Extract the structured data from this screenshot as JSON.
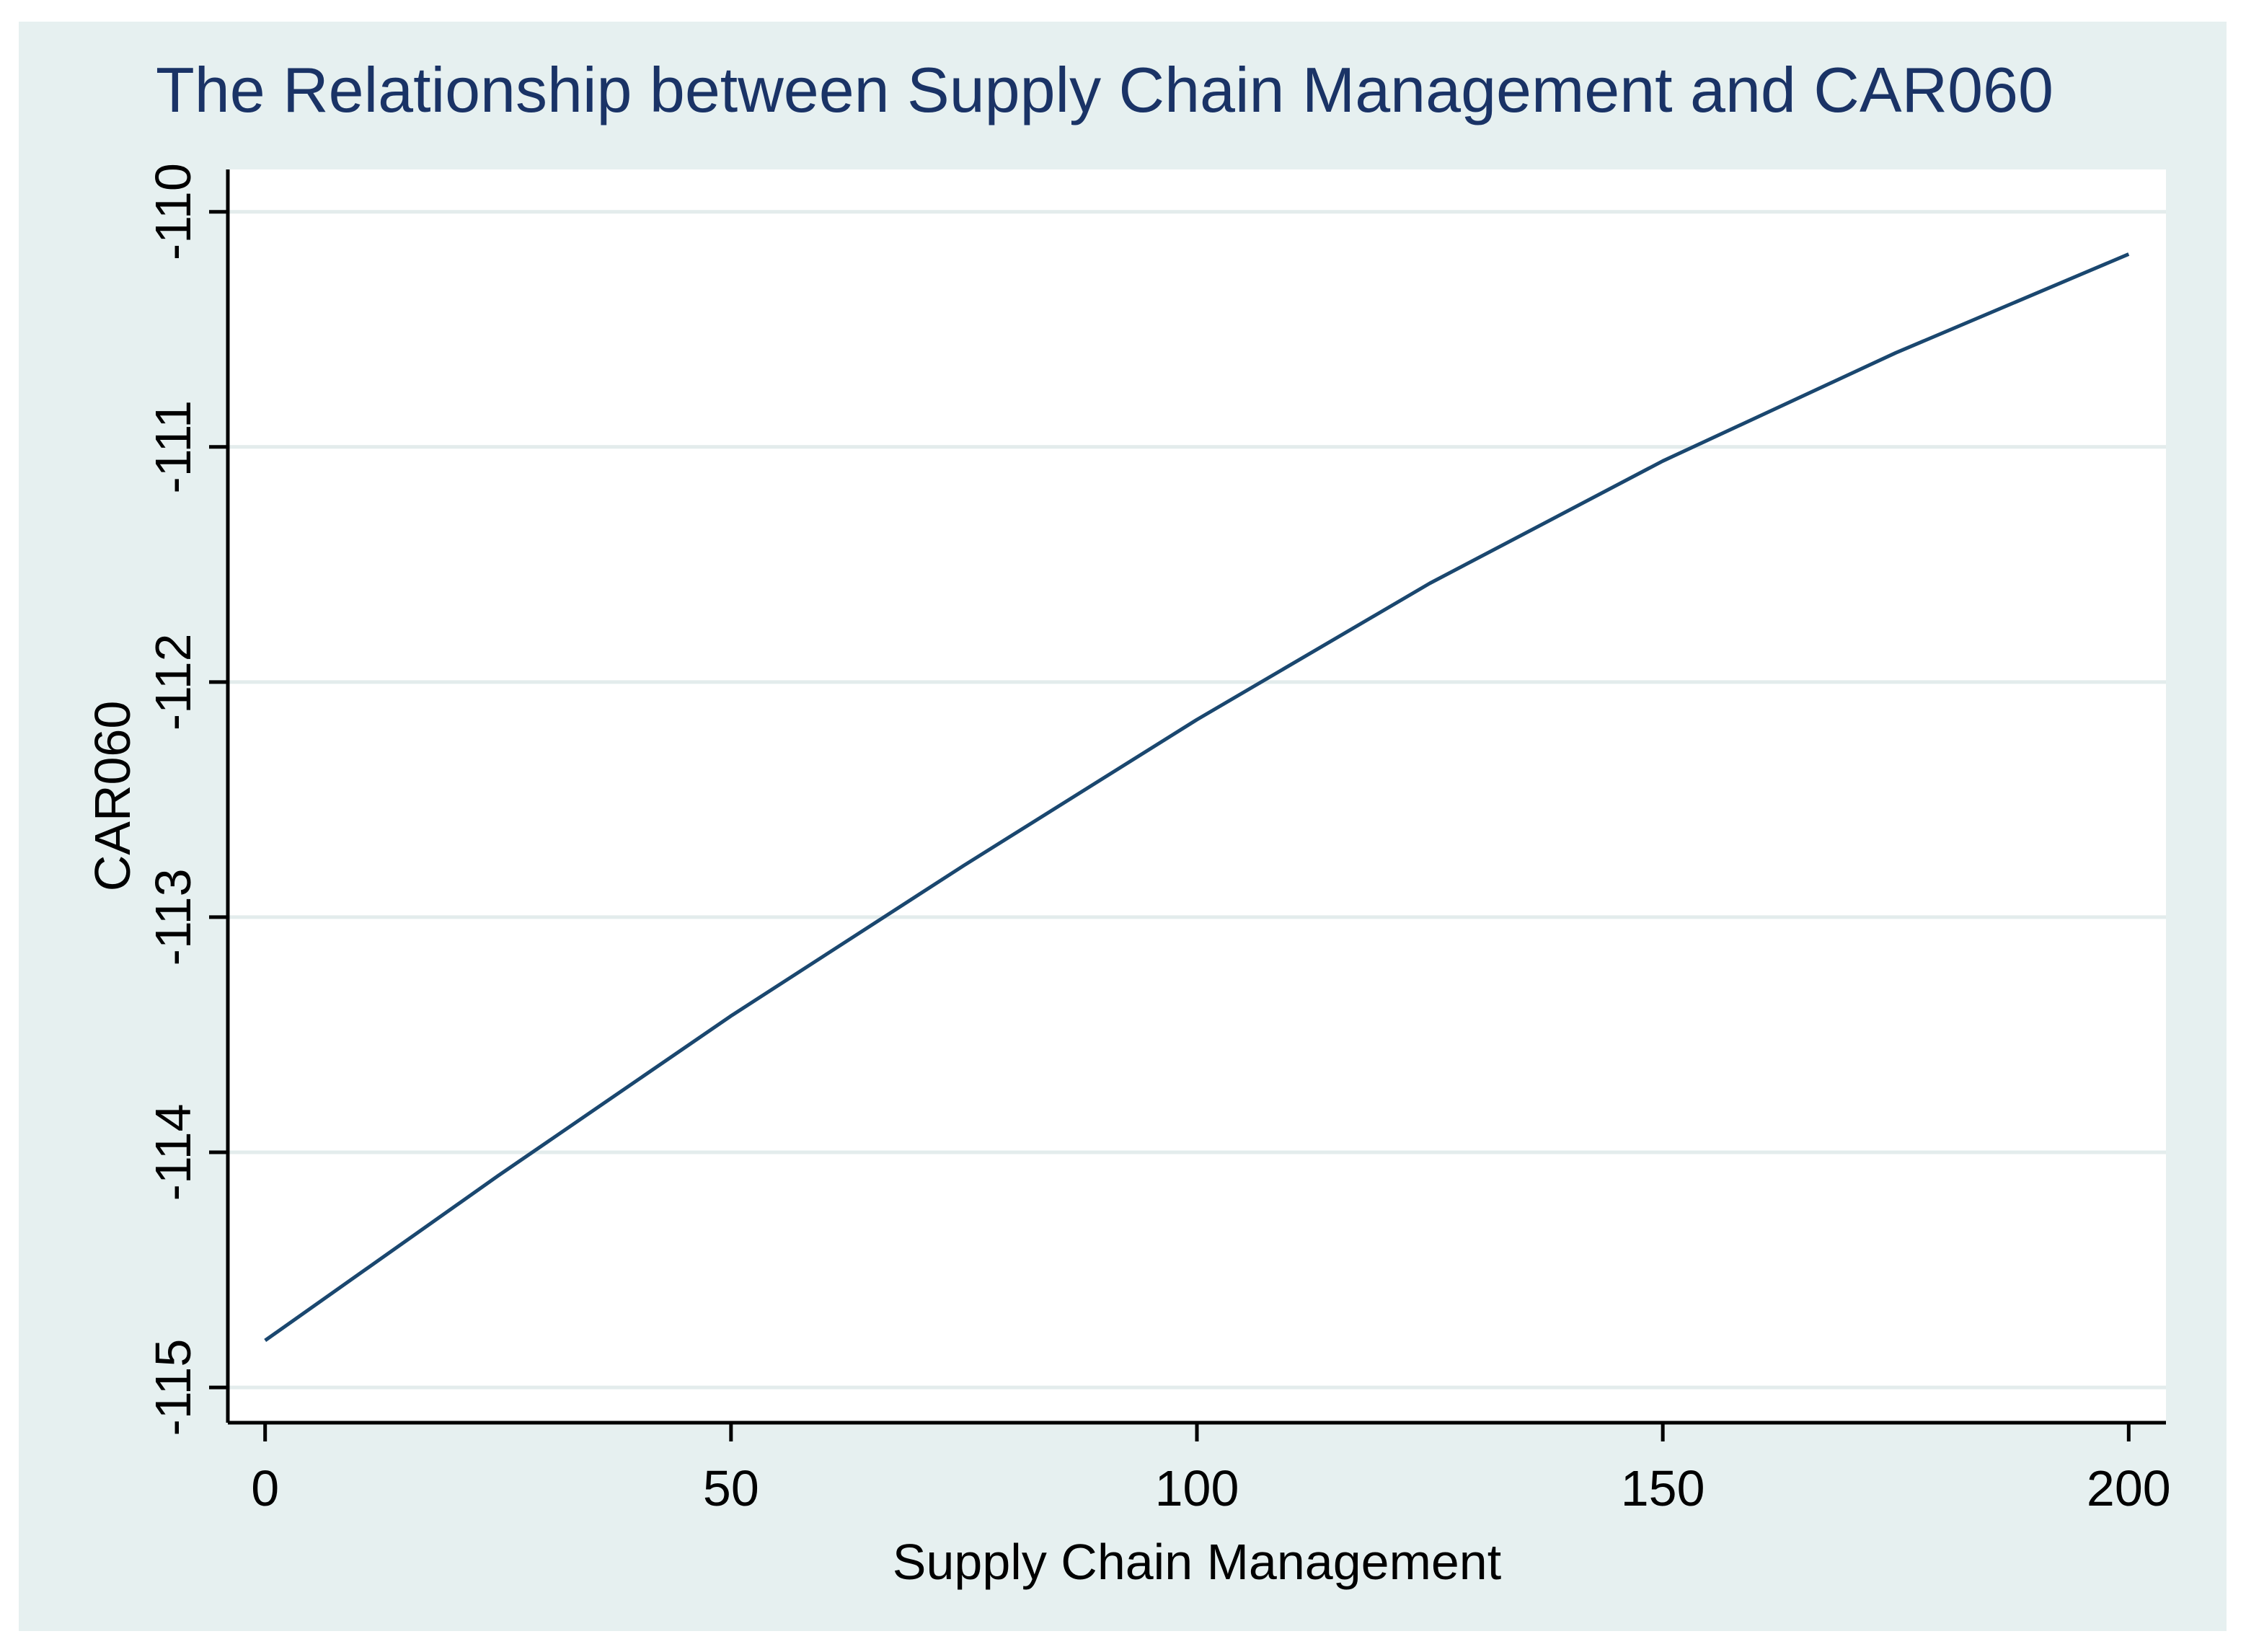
{
  "chart_data": {
    "type": "line",
    "title": "The Relationship between Supply Chain Management and CAR060",
    "xlabel": "Supply Chain Management",
    "ylabel": "CAR060",
    "xlim": [
      -4,
      204
    ],
    "ylim": [
      -115.15,
      -109.82
    ],
    "x_ticks": [
      0,
      50,
      100,
      150,
      200
    ],
    "x_tick_labels": [
      "0",
      "50",
      "100",
      "150",
      "200"
    ],
    "y_ticks": [
      -115,
      -114,
      -113,
      -112,
      -111,
      -110
    ],
    "y_tick_labels": [
      "-115",
      "-114",
      "-113",
      "-112",
      "-111",
      "-110"
    ],
    "grid": true,
    "legend": "none",
    "series": [
      {
        "x": [
          0,
          25,
          50,
          75,
          100,
          125,
          150,
          175,
          200
        ],
        "values": [
          -114.8,
          -114.1,
          -113.42,
          -112.78,
          -112.16,
          -111.58,
          -111.06,
          -110.6,
          -110.18
        ]
      }
    ]
  },
  "colors": {
    "frame_background": "#e6f0f0",
    "plot_background": "#ffffff",
    "gridline": "#e3ecec",
    "line": "#1a476f",
    "title_text": "#1a3366",
    "axis": "#000000"
  }
}
